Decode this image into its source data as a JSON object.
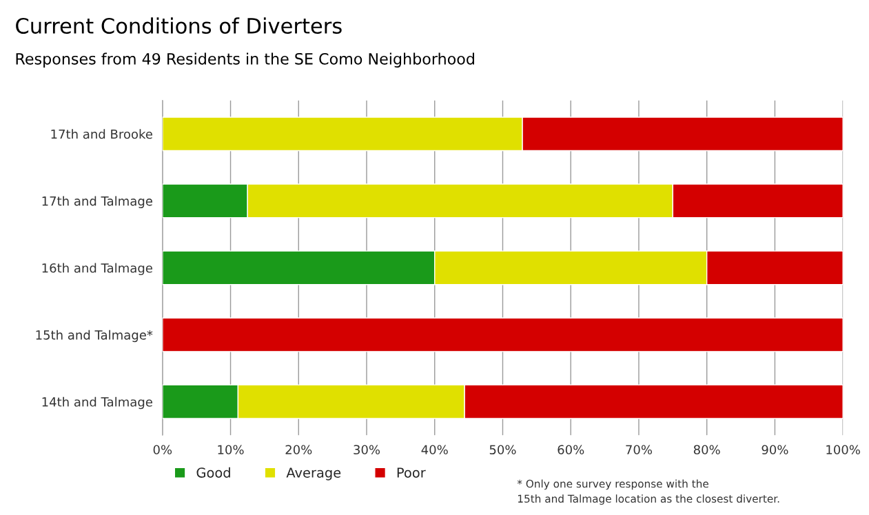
{
  "chart_data": {
    "type": "bar",
    "orientation": "horizontal",
    "stacked": true,
    "title": "Current Conditions of Diverters",
    "subtitle": "Responses from 49 Residents in the SE Como Neighborhood",
    "categories": [
      "17th and Brooke",
      "17th and Talmage",
      "16th and Talmage",
      "15th and Talmage*",
      "14th and Talmage"
    ],
    "series": [
      {
        "name": "Good",
        "color": "#1a9a1a",
        "values": [
          0,
          12.5,
          40,
          0,
          11.1
        ]
      },
      {
        "name": "Average",
        "color": "#e0e000",
        "values": [
          52.9,
          62.5,
          40,
          0,
          33.3
        ]
      },
      {
        "name": "Poor",
        "color": "#d40000",
        "values": [
          47.1,
          25,
          20,
          100,
          55.6
        ]
      }
    ],
    "xlim": [
      0,
      100
    ],
    "xticks": [
      {
        "value": 0,
        "label": "0%"
      },
      {
        "value": 10,
        "label": "10%"
      },
      {
        "value": 20,
        "label": "20%"
      },
      {
        "value": 30,
        "label": "30%"
      },
      {
        "value": 40,
        "label": "40%"
      },
      {
        "value": 50,
        "label": "50%"
      },
      {
        "value": 60,
        "label": "60%"
      },
      {
        "value": 70,
        "label": "70%"
      },
      {
        "value": 80,
        "label": "80%"
      },
      {
        "value": 90,
        "label": "90%"
      },
      {
        "value": 100,
        "label": "100%"
      }
    ],
    "grid": "x",
    "legend": "bottom",
    "annotations": [
      "* Only one survey response with the\n15th and Talmage location as the closest diverter."
    ]
  }
}
